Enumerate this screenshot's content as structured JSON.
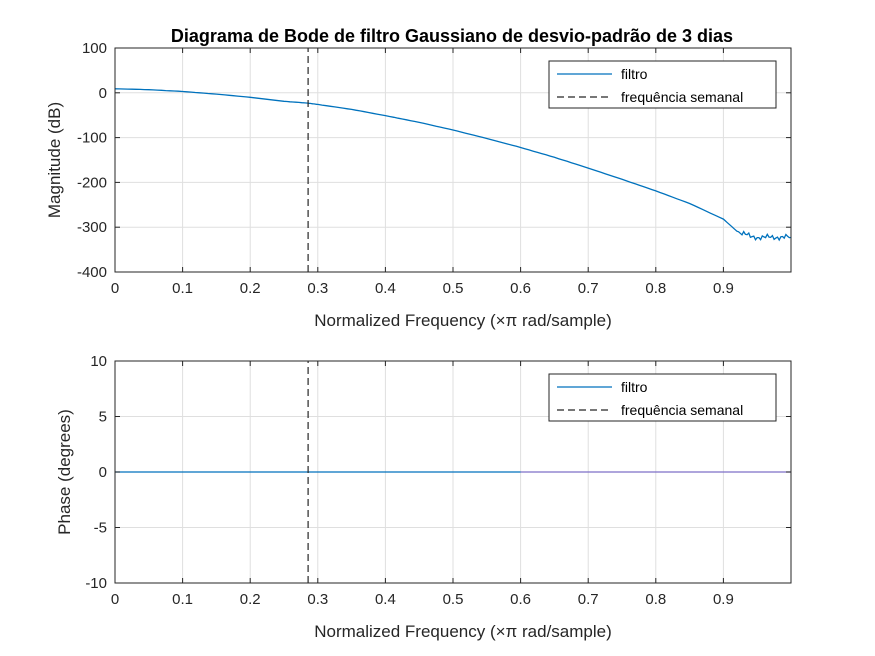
{
  "colors": {
    "series": "#0072bd",
    "phase_tail": "#7e6fc8",
    "reference_line": "#262626",
    "grid": "#dfdfdf",
    "axes": "#262626"
  },
  "chart_data": [
    {
      "type": "line",
      "title": "Diagrama de Bode de filtro Gaussiano de desvio-padrão de 3 dias",
      "xlabel": "Normalized Frequency  (×π rad/sample)",
      "ylabel": "Magnitude (dB)",
      "xlim": [
        0,
        1
      ],
      "ylim": [
        -400,
        100
      ],
      "xticks": [
        0,
        0.1,
        0.2,
        0.3,
        0.4,
        0.5,
        0.6,
        0.7,
        0.8,
        0.9
      ],
      "xtick_labels": [
        "0",
        "0.1",
        "0.2",
        "0.3",
        "0.4",
        "0.5",
        "0.6",
        "0.7",
        "0.8",
        "0.9"
      ],
      "yticks": [
        -400,
        -300,
        -200,
        -100,
        0,
        100
      ],
      "ytick_labels": [
        "-400",
        "-300",
        "-200",
        "-100",
        "0",
        "100"
      ],
      "grid": true,
      "legend": "top-right",
      "series": [
        {
          "name": "filtro",
          "style": "solid",
          "x": [
            0,
            0.05,
            0.1,
            0.15,
            0.2,
            0.25,
            0.285,
            0.3,
            0.35,
            0.4,
            0.45,
            0.5,
            0.55,
            0.6,
            0.65,
            0.7,
            0.75,
            0.8,
            0.85,
            0.9,
            0.92,
            0.94,
            0.96,
            0.98,
            1.0
          ],
          "y": [
            9,
            7,
            3,
            -3,
            -10,
            -19,
            -23,
            -26,
            -37,
            -51,
            -66,
            -83,
            -102,
            -122,
            -144,
            -168,
            -193,
            -219,
            -247,
            -282,
            -309,
            -321,
            -323,
            -322,
            -323
          ]
        },
        {
          "name": "frequência semanal",
          "style": "dashed",
          "x": [
            0.2857,
            0.2857
          ],
          "y": [
            -400,
            100
          ]
        }
      ]
    },
    {
      "type": "line",
      "title": "",
      "xlabel": "Normalized Frequency  (×π rad/sample)",
      "ylabel": "Phase (degrees)",
      "xlim": [
        0,
        1
      ],
      "ylim": [
        -10,
        10
      ],
      "xticks": [
        0,
        0.1,
        0.2,
        0.3,
        0.4,
        0.5,
        0.6,
        0.7,
        0.8,
        0.9
      ],
      "xtick_labels": [
        "0",
        "0.1",
        "0.2",
        "0.3",
        "0.4",
        "0.5",
        "0.6",
        "0.7",
        "0.8",
        "0.9"
      ],
      "yticks": [
        -10,
        -5,
        0,
        5,
        10
      ],
      "ytick_labels": [
        "-10",
        "-5",
        "0",
        "5",
        "10"
      ],
      "grid": true,
      "legend": "top-right",
      "series": [
        {
          "name": "filtro",
          "style": "solid",
          "x": [
            0,
            0.6,
            1.0
          ],
          "y": [
            0,
            0,
            0
          ]
        },
        {
          "name": "frequência semanal",
          "style": "dashed",
          "x": [
            0.2857,
            0.2857
          ],
          "y": [
            -10,
            10
          ]
        }
      ]
    }
  ]
}
